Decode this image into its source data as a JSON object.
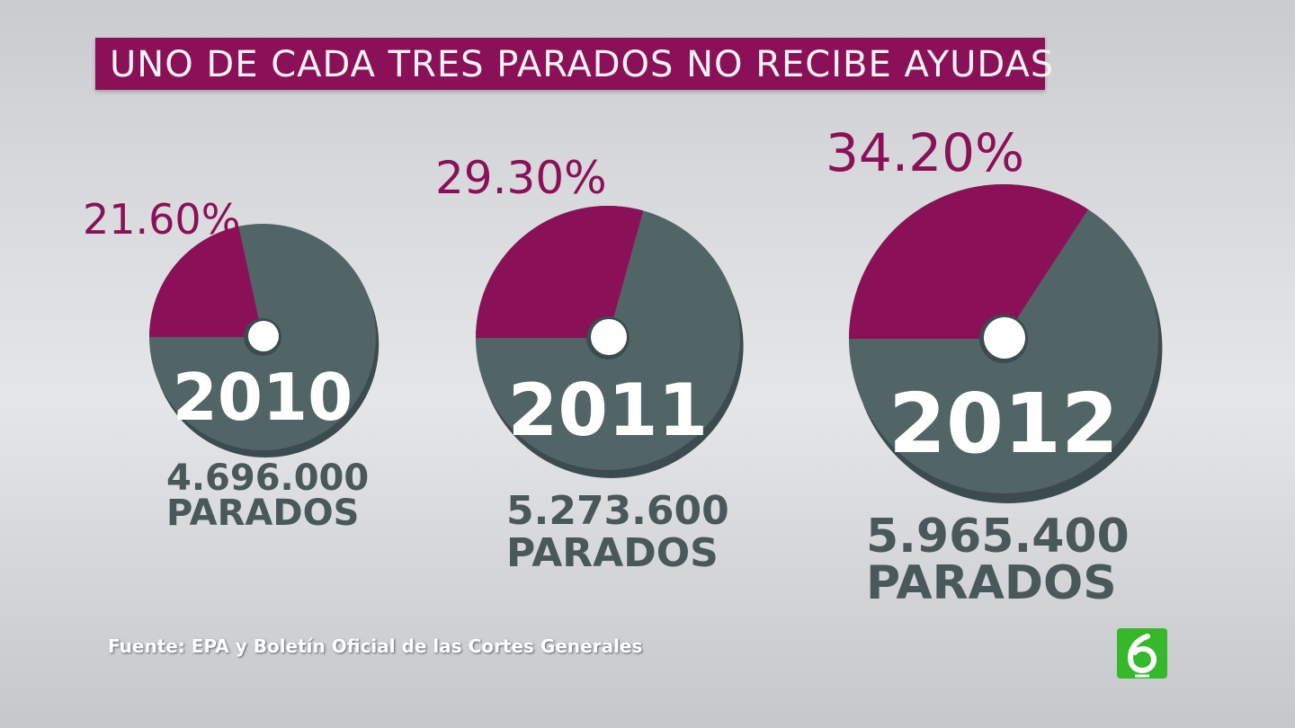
{
  "title": "UNO DE CADA TRES PARADOS NO RECIBE AYUDAS",
  "source": "Fuente: EPA y Boletín Oficial de las Cortes Generales",
  "logo_icon": "la-sexta-logo-icon",
  "colors": {
    "accent": "#8a1158",
    "slate": "#516466",
    "slate_dark": "#3c4b4d",
    "logo_green": "#35b82a"
  },
  "chart_data": {
    "type": "pie",
    "title": "UNO DE CADA TRES PARADOS NO RECIBE AYUDAS",
    "charts": [
      {
        "year": "2010",
        "percent": 21.6,
        "percent_label": "21.60%",
        "count": "4.696.000",
        "count_label": "PARADOS"
      },
      {
        "year": "2011",
        "percent": 29.3,
        "percent_label": "29.30%",
        "count": "5.273.600",
        "count_label": "PARADOS"
      },
      {
        "year": "2012",
        "percent": 34.2,
        "percent_label": "34.20%",
        "count": "5.965.400",
        "count_label": "PARADOS"
      }
    ]
  }
}
